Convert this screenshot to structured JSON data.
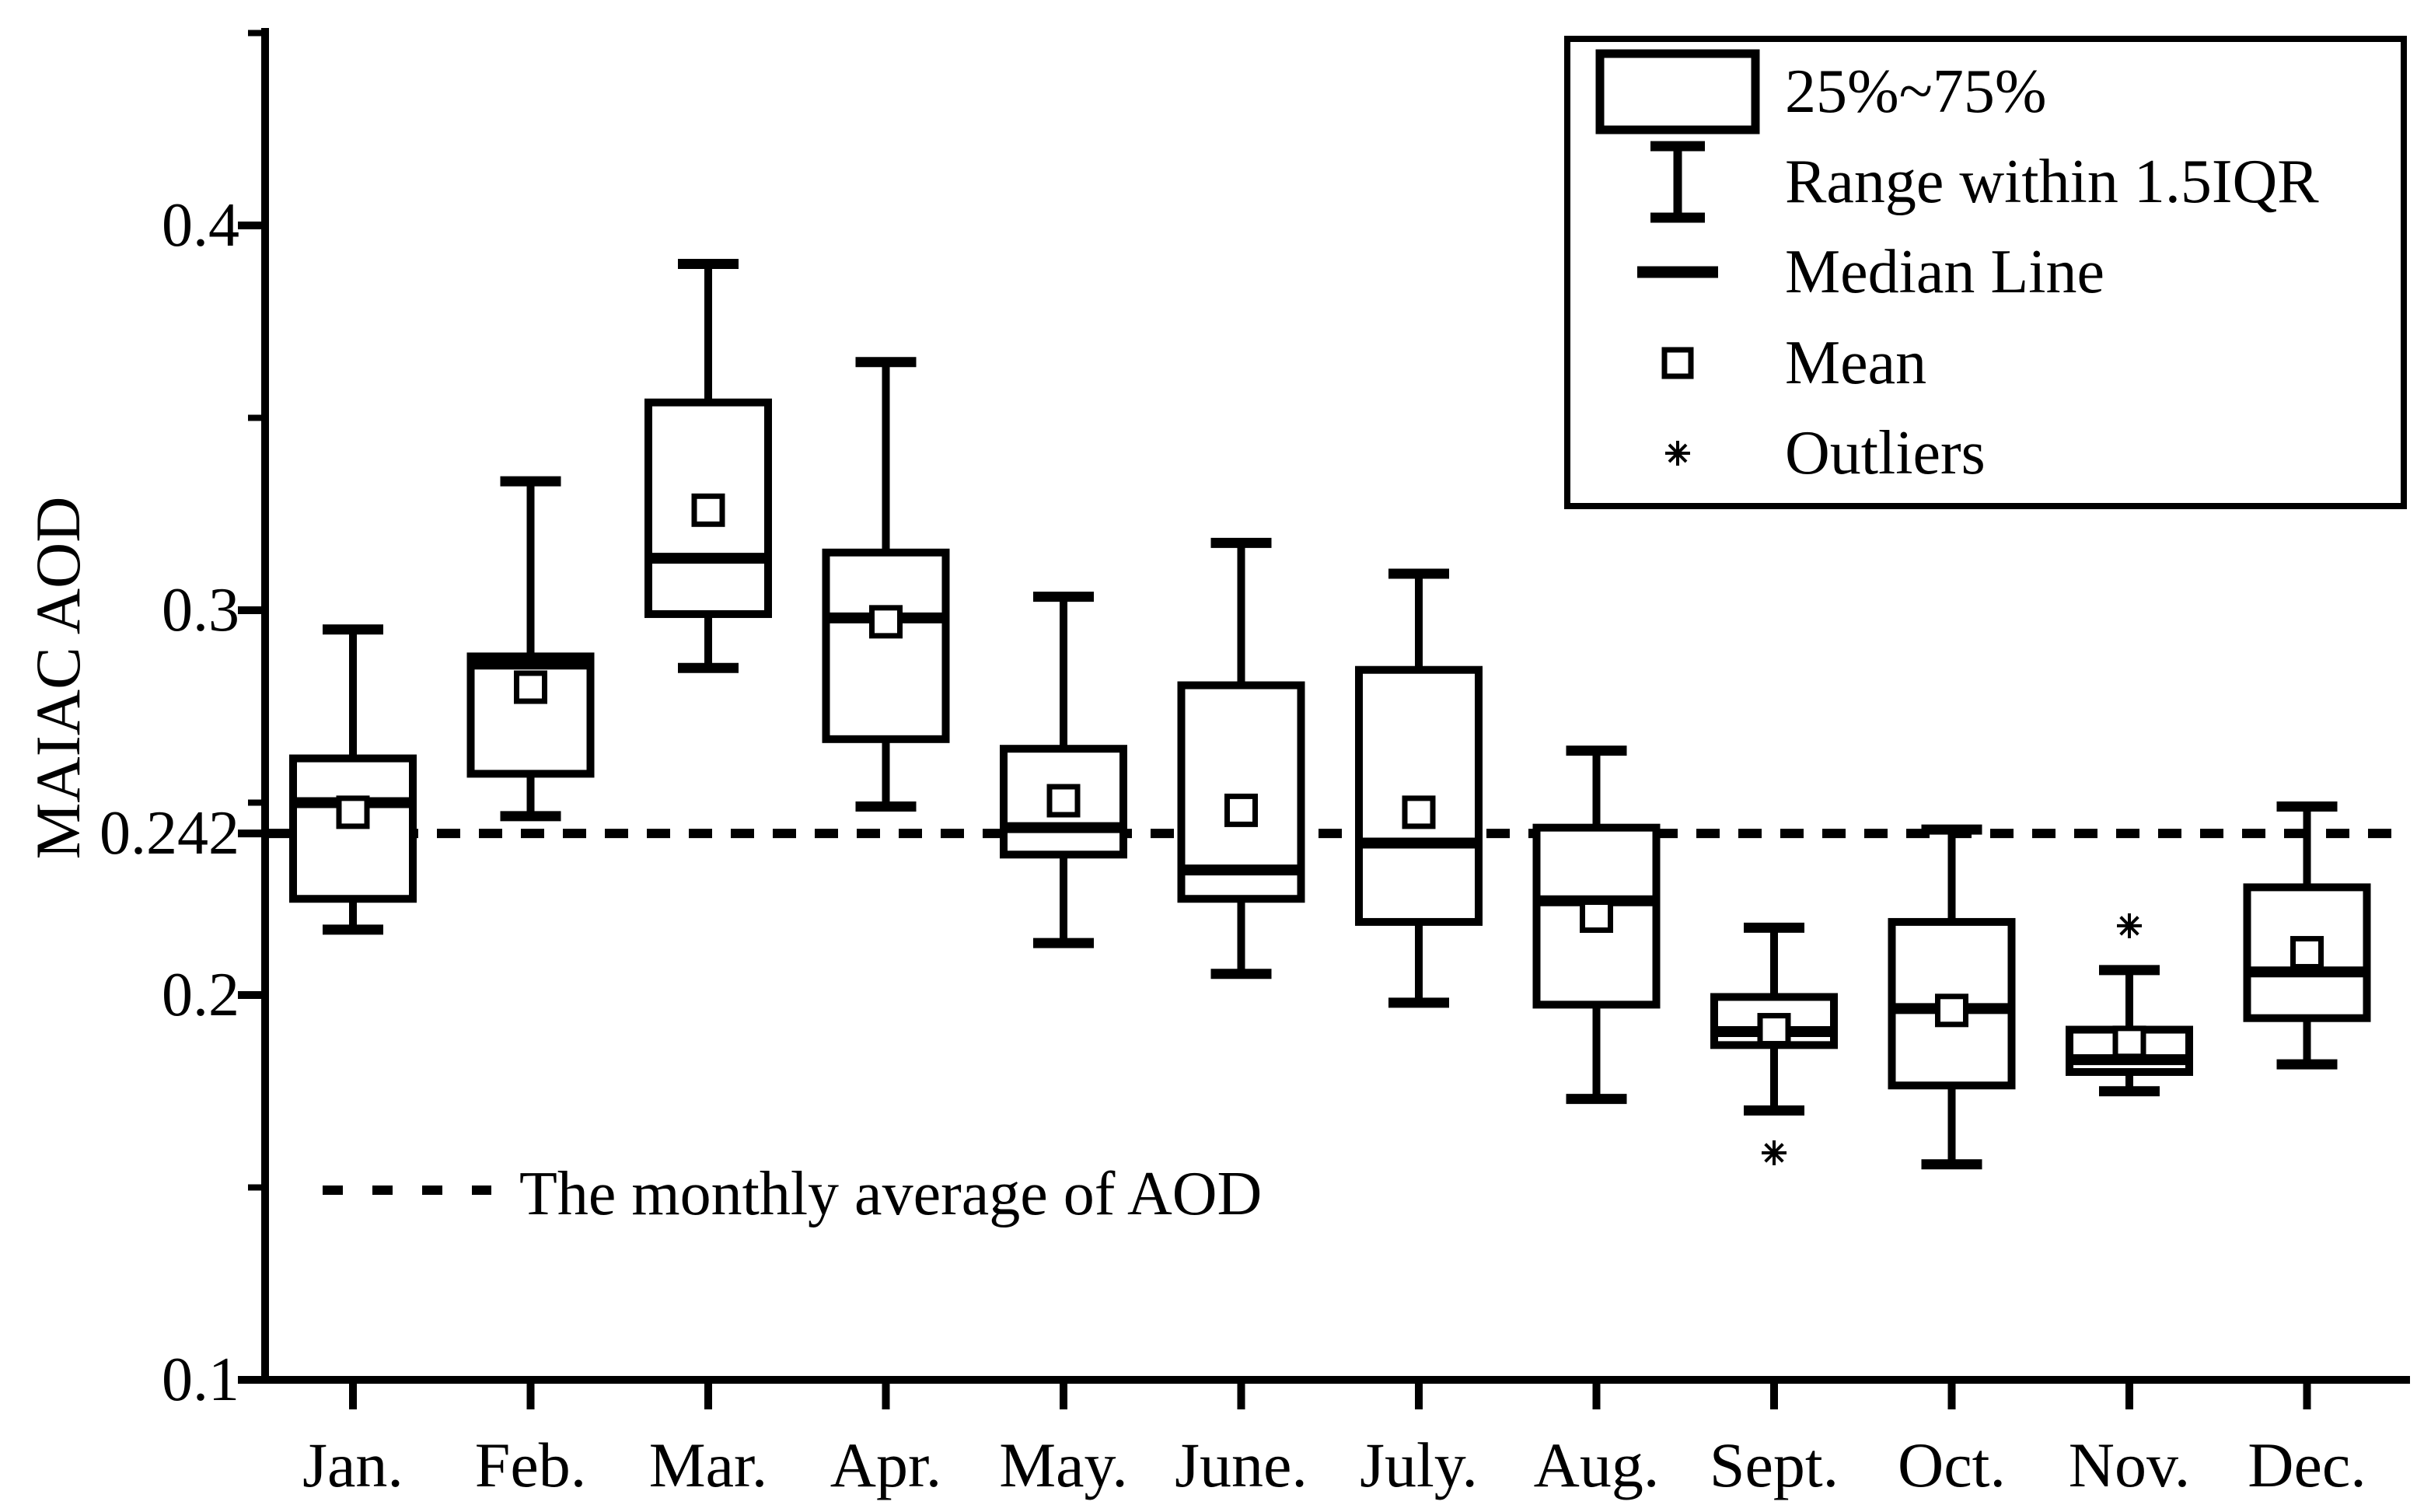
{
  "figure": {
    "background_color": "#ffffff",
    "ink_color": "#000000"
  },
  "y_axis": {
    "title": "MAIAC AOD",
    "tick_values": [
      0.1,
      0.2,
      0.242,
      0.3,
      0.4
    ],
    "tick_labels": [
      "0.1",
      "0.2",
      "0.242",
      "0.3",
      "0.4"
    ],
    "minor_tick_values": [
      0.15,
      0.25,
      0.35,
      0.45
    ]
  },
  "legend": {
    "items": [
      {
        "symbol": "box-symbol",
        "label": "25%~75%"
      },
      {
        "symbol": "whisker-symbol",
        "label": "Range within 1.5IQR"
      },
      {
        "symbol": "median-line-symbol",
        "label": "Median Line"
      },
      {
        "symbol": "mean-symbol",
        "label": "Mean"
      },
      {
        "symbol": "outlier-symbol",
        "label": "Outliers"
      }
    ]
  },
  "chart_data": {
    "type": "box",
    "ylabel": "MAIAC AOD",
    "ylim": [
      0.1,
      0.452
    ],
    "grid": false,
    "legend_position": "top-right",
    "categories": [
      "Jan.",
      "Feb.",
      "Mar.",
      "Apr.",
      "May.",
      "June.",
      "July.",
      "Aug.",
      "Sept.",
      "Oct.",
      "Nov.",
      "Dec."
    ],
    "reference_line": {
      "value": 0.242,
      "label": "The monthly average of AOD",
      "style": "dashed"
    },
    "boxes": [
      {
        "month": "Jan.",
        "whisker_low": 0.217,
        "q1": 0.225,
        "median": 0.25,
        "mean": 0.2475,
        "q3": 0.2615,
        "whisker_high": 0.295,
        "outliers": []
      },
      {
        "month": "Feb.",
        "whisker_low": 0.2465,
        "q1": 0.2575,
        "median": 0.286,
        "mean": 0.28,
        "q3": 0.288,
        "whisker_high": 0.3335,
        "outliers": []
      },
      {
        "month": "Mar.",
        "whisker_low": 0.285,
        "q1": 0.299,
        "median": 0.3135,
        "mean": 0.326,
        "q3": 0.354,
        "whisker_high": 0.39,
        "outliers": []
      },
      {
        "month": "Apr.",
        "whisker_low": 0.249,
        "q1": 0.2665,
        "median": 0.298,
        "mean": 0.297,
        "q3": 0.315,
        "whisker_high": 0.3645,
        "outliers": []
      },
      {
        "month": "May.",
        "whisker_low": 0.2135,
        "q1": 0.2365,
        "median": 0.2435,
        "mean": 0.2505,
        "q3": 0.264,
        "whisker_high": 0.3035,
        "outliers": []
      },
      {
        "month": "June.",
        "whisker_low": 0.2055,
        "q1": 0.225,
        "median": 0.2325,
        "mean": 0.248,
        "q3": 0.2805,
        "whisker_high": 0.3175,
        "outliers": []
      },
      {
        "month": "July.",
        "whisker_low": 0.198,
        "q1": 0.219,
        "median": 0.2395,
        "mean": 0.2475,
        "q3": 0.2845,
        "whisker_high": 0.3095,
        "outliers": []
      },
      {
        "month": "Aug.",
        "whisker_low": 0.173,
        "q1": 0.1975,
        "median": 0.2245,
        "mean": 0.2205,
        "q3": 0.2435,
        "whisker_high": 0.2635,
        "outliers": []
      },
      {
        "month": "Sept.",
        "whisker_low": 0.17,
        "q1": 0.187,
        "median": 0.1905,
        "mean": 0.191,
        "q3": 0.1995,
        "whisker_high": 0.2175,
        "outliers": [
          0.159
        ]
      },
      {
        "month": "Oct.",
        "whisker_low": 0.156,
        "q1": 0.1765,
        "median": 0.1965,
        "mean": 0.196,
        "q3": 0.219,
        "whisker_high": 0.243,
        "outliers": []
      },
      {
        "month": "Nov.",
        "whisker_low": 0.175,
        "q1": 0.18,
        "median": 0.1832,
        "mean": 0.1877,
        "q3": 0.191,
        "whisker_high": 0.2065,
        "outliers": [
          0.218
        ]
      },
      {
        "month": "Dec.",
        "whisker_low": 0.182,
        "q1": 0.194,
        "median": 0.206,
        "mean": 0.211,
        "q3": 0.228,
        "whisker_high": 0.249,
        "outliers": []
      }
    ]
  }
}
